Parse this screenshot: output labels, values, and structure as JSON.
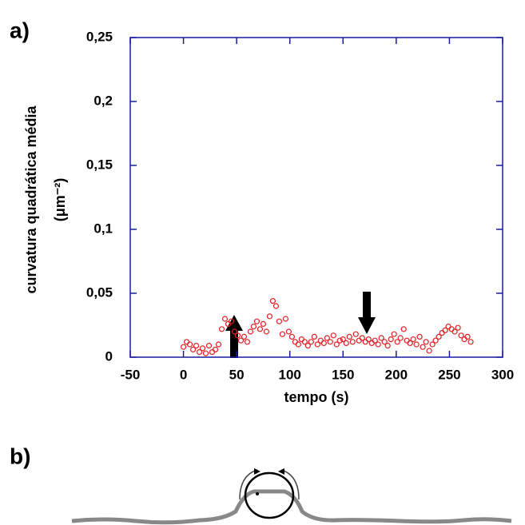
{
  "panel_a_label": "a)",
  "panel_b_label": "b)",
  "chart_data": {
    "type": "scatter",
    "x_label": "tempo (s)",
    "y_label": "curvatura quadrática média",
    "y_unit": "(μm⁻²)",
    "xlim": [
      -50,
      300
    ],
    "xticks": [
      -50,
      0,
      50,
      100,
      150,
      200,
      250,
      300
    ],
    "ylim": [
      0,
      0.25
    ],
    "yticks": [
      {
        "value": 0,
        "label": "0"
      },
      {
        "value": 0.05,
        "label": "0,05"
      },
      {
        "value": 0.1,
        "label": "0,1"
      },
      {
        "value": 0.15,
        "label": "0,15"
      },
      {
        "value": 0.2,
        "label": "0,2"
      },
      {
        "value": 0.25,
        "label": "0,25"
      }
    ],
    "frame_color": "#1a1aa0",
    "series": [
      {
        "color": "#e02020",
        "x": [
          0,
          3,
          6,
          9,
          12,
          15,
          18,
          21,
          24,
          27,
          30,
          33,
          36,
          39,
          42,
          45,
          48,
          51,
          54,
          57,
          60,
          63,
          66,
          69,
          72,
          75,
          78,
          81,
          84,
          87,
          90,
          93,
          96,
          99,
          102,
          105,
          108,
          111,
          114,
          117,
          120,
          123,
          126,
          129,
          132,
          135,
          138,
          141,
          144,
          147,
          150,
          153,
          156,
          159,
          162,
          165,
          168,
          171,
          174,
          177,
          180,
          183,
          186,
          189,
          192,
          195,
          198,
          201,
          204,
          207,
          210,
          213,
          216,
          219,
          222,
          225,
          228,
          231,
          234,
          237,
          240,
          243,
          246,
          249,
          252,
          255,
          258,
          261,
          264,
          267,
          270
        ],
        "values": [
          0.008,
          0.012,
          0.01,
          0.006,
          0.009,
          0.004,
          0.007,
          0.003,
          0.009,
          0.004,
          0.006,
          0.01,
          0.022,
          0.03,
          0.026,
          0.028,
          0.02,
          0.017,
          0.013,
          0.016,
          0.012,
          0.02,
          0.024,
          0.028,
          0.022,
          0.026,
          0.02,
          0.032,
          0.044,
          0.04,
          0.028,
          0.018,
          0.03,
          0.02,
          0.016,
          0.012,
          0.01,
          0.014,
          0.012,
          0.009,
          0.012,
          0.016,
          0.01,
          0.013,
          0.011,
          0.015,
          0.012,
          0.017,
          0.01,
          0.013,
          0.014,
          0.011,
          0.016,
          0.012,
          0.018,
          0.013,
          0.015,
          0.012,
          0.014,
          0.011,
          0.013,
          0.01,
          0.015,
          0.012,
          0.009,
          0.014,
          0.018,
          0.012,
          0.015,
          0.022,
          0.013,
          0.011,
          0.014,
          0.01,
          0.016,
          0.008,
          0.012,
          0.005,
          0.01,
          0.013,
          0.016,
          0.019,
          0.021,
          0.024,
          0.022,
          0.02,
          0.023,
          0.017,
          0.014,
          0.016,
          0.012
        ]
      }
    ]
  }
}
